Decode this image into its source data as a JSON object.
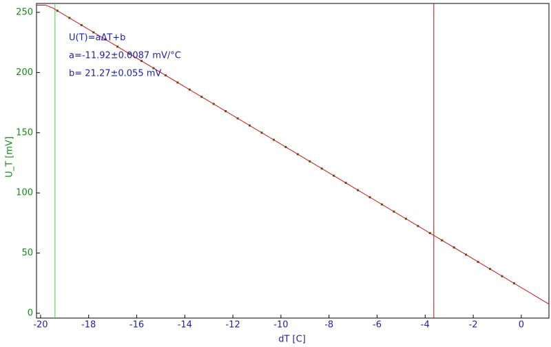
{
  "chart_data": {
    "type": "scatter",
    "x_label": "dT [C]",
    "y_label": "U_T [mV]",
    "annotations": [
      "U(T)=aΔT+b",
      "a=-11.92±0.0087 mV/°C",
      "b= 21.27±0.055 mV"
    ],
    "xlim": [
      -20.17,
      1.15
    ],
    "ylim": [
      -4,
      257.4
    ],
    "xticks": [
      -20,
      -18,
      -16,
      -14,
      -12,
      -10,
      -8,
      -6,
      -4,
      -2,
      0
    ],
    "yticks": [
      0,
      50,
      100,
      150,
      200,
      250
    ],
    "x_axis_color": "#1c1cb0",
    "y_axis_color": "#138a13",
    "annotation_color": "#1c1cb0",
    "series": [
      {
        "color": "#2f6b12",
        "x": [
          -19.3,
          -18.8,
          -18.3,
          -17.8,
          -17.3,
          -16.8,
          -16.3,
          -15.8,
          -15.3,
          -14.8,
          -14.3,
          -13.8,
          -13.3,
          -12.8,
          -12.3,
          -11.8,
          -11.3,
          -10.8,
          -10.3,
          -9.8,
          -9.3,
          -8.8,
          -8.3,
          -7.8,
          -7.3,
          -6.8,
          -6.3,
          -5.8,
          -5.3,
          -4.8,
          -4.3,
          -3.8,
          -3.3,
          -2.8,
          -2.3,
          -1.8,
          -1.3,
          -0.8,
          -0.3
        ],
        "values": [
          251.3,
          245.4,
          239.4,
          233.4,
          227.5,
          221.5,
          215.6,
          209.6,
          203.6,
          197.7,
          191.7,
          185.8,
          179.8,
          173.9,
          167.9,
          161.9,
          156.0,
          150.0,
          144.1,
          138.1,
          132.1,
          126.2,
          120.2,
          114.3,
          108.3,
          102.3,
          96.4,
          90.4,
          84.5,
          78.5,
          72.5,
          66.6,
          60.6,
          54.7,
          48.7,
          42.7,
          36.8,
          30.8,
          24.9
        ]
      },
      {
        "type": "line",
        "color": "#cc1010",
        "x": [
          -20.17,
          -19.8,
          -19.5,
          1.15
        ],
        "values": [
          256,
          256,
          253.7,
          7.6
        ]
      }
    ],
    "vlines": [
      {
        "x": -19.4,
        "color": "#44cc44"
      },
      {
        "x": -3.64,
        "color": "#aa1111"
      }
    ]
  }
}
